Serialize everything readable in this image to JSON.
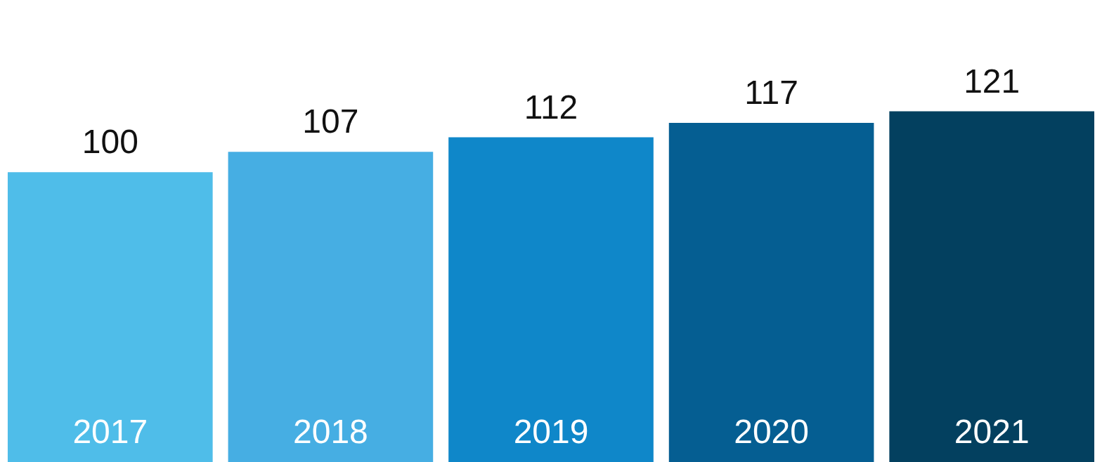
{
  "chart_data": {
    "type": "bar",
    "categories": [
      "2017",
      "2018",
      "2019",
      "2020",
      "2021"
    ],
    "values": [
      100,
      107,
      112,
      117,
      121
    ],
    "colors": [
      "#4fbde9",
      "#46aee3",
      "#0f87c9",
      "#055e92",
      "#03405f"
    ],
    "data_labels": true
  }
}
